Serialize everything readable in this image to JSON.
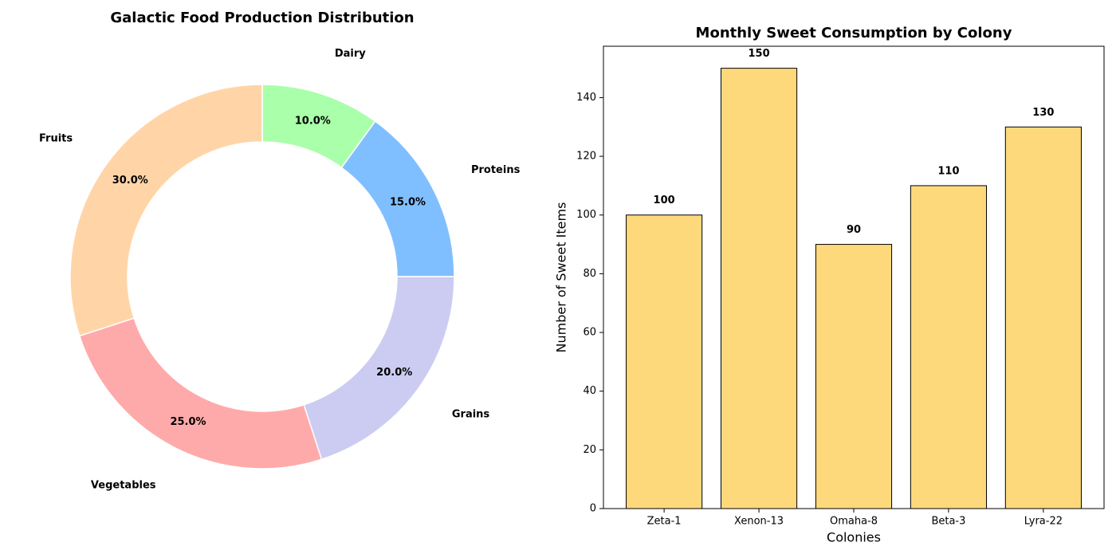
{
  "chart_data": [
    {
      "type": "pie",
      "title": "Galactic Food Production Distribution",
      "categories": [
        "Proteins",
        "Dairy",
        "Fruits",
        "Vegetables",
        "Grains"
      ],
      "values": [
        15,
        10,
        30,
        25,
        20
      ],
      "value_labels": [
        "15.0%",
        "10.0%",
        "30.0%",
        "25.0%",
        "20.0%"
      ],
      "colors": [
        "#80bfff",
        "#aaffaa",
        "#ffd5a8",
        "#ffaaaa",
        "#ccccf2"
      ],
      "donut": true
    },
    {
      "type": "bar",
      "title": "Monthly Sweet Consumption by Colony",
      "x_label": "Colonies",
      "y_label": "Number of Sweet Items",
      "categories": [
        "Zeta-1",
        "Xenon-13",
        "Omaha-8",
        "Beta-3",
        "Lyra-22"
      ],
      "values": [
        100,
        150,
        90,
        110,
        130
      ],
      "color": "#fdd97c",
      "edgecolor": "#000000",
      "ylim": [
        0,
        157.5
      ],
      "yticks": [
        0,
        20,
        40,
        60,
        80,
        100,
        120,
        140
      ]
    }
  ]
}
